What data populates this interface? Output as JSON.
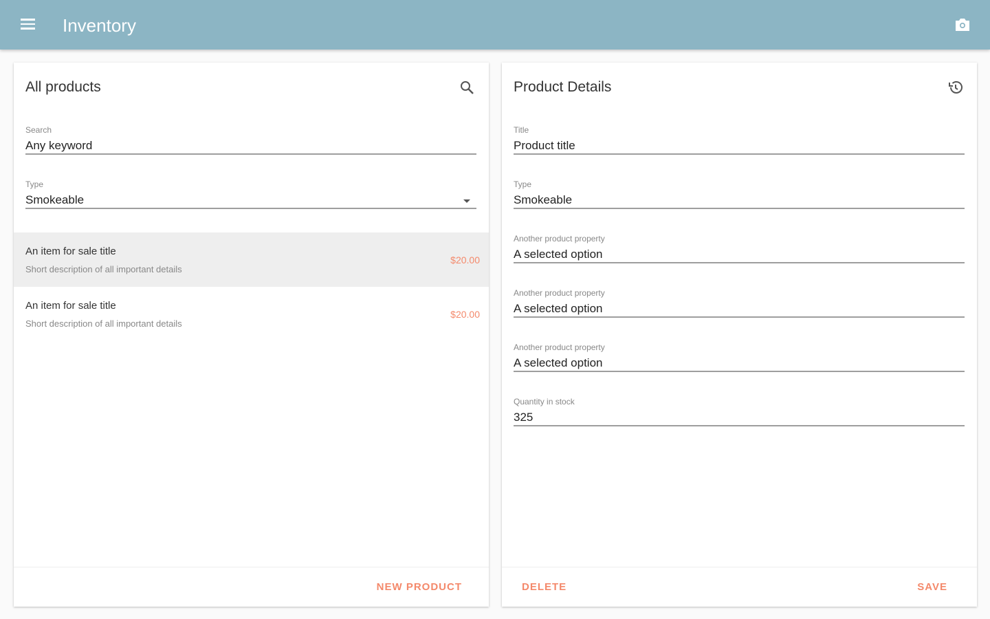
{
  "appbar": {
    "title": "Inventory",
    "menu_icon": "menu-icon",
    "action_icon": "camera-icon",
    "color": "#8cb5c4"
  },
  "accent": "#f4896b",
  "products": {
    "title": "All products",
    "search_field": {
      "label": "Search",
      "value": "Any keyword"
    },
    "type_field": {
      "label": "Type",
      "value": "Smokeable"
    },
    "items": [
      {
        "title": "An item for sale title",
        "description": "Short description of all important details",
        "price": "$20.00",
        "selected": true
      },
      {
        "title": "An item for sale title",
        "description": "Short description of all important details",
        "price": "$20.00",
        "selected": false
      }
    ],
    "new_button": "NEW PRODUCT"
  },
  "details": {
    "title": "Product Details",
    "fields": [
      {
        "label": "Title",
        "value": "Product title"
      },
      {
        "label": "Type",
        "value": "Smokeable"
      },
      {
        "label": "Another product property",
        "value": "A selected option"
      },
      {
        "label": "Another product property",
        "value": "A selected option"
      },
      {
        "label": "Another product property",
        "value": "A selected option"
      },
      {
        "label": "Quantity in stock",
        "value": "325"
      }
    ],
    "delete_button": "DELETE",
    "save_button": "SAVE"
  }
}
